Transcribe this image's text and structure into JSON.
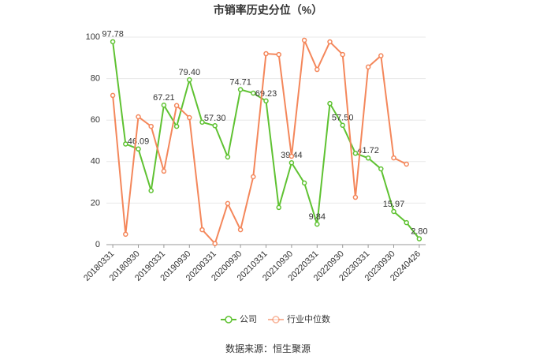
{
  "chart_data": {
    "type": "line",
    "title": "市销率历史分位（%）",
    "categories": [
      "20180331",
      null,
      "20180930",
      null,
      "20190331",
      null,
      "20190930",
      null,
      "20200331",
      null,
      "20200930",
      null,
      "20210331",
      null,
      "20210930",
      null,
      "20220331",
      null,
      "20220930",
      null,
      "20230331",
      null,
      "20230930",
      null,
      "20240426"
    ],
    "series": [
      {
        "name": "公司",
        "color": "#5fc232",
        "values": [
          97.78,
          48.5,
          46.09,
          26,
          67.21,
          57,
          79.4,
          59,
          57.3,
          42.2,
          74.71,
          73,
          69.23,
          17.9,
          39.44,
          29.7,
          9.84,
          68,
          57.5,
          44,
          41.72,
          36.5,
          15.97,
          10.6,
          2.8
        ],
        "value_labels": [
          "97.78",
          null,
          "46.09",
          null,
          "67.21",
          null,
          "79.40",
          null,
          "57.30",
          null,
          "74.71",
          null,
          "69.23",
          null,
          "39.44",
          null,
          "9.84",
          null,
          "57.50",
          null,
          "41.72",
          null,
          "15.97",
          null,
          "2.80"
        ]
      },
      {
        "name": "行业中位数",
        "color": "#f4875b",
        "values": [
          71.9,
          5,
          61.6,
          57,
          35.4,
          67,
          61.2,
          7.2,
          0.5,
          19.8,
          7.2,
          32.7,
          92,
          91.6,
          42.6,
          98.5,
          84.4,
          97.7,
          91.6,
          22.8,
          85.6,
          91,
          41.8,
          38.8,
          null
        ]
      }
    ],
    "ylim": [
      0,
      100
    ],
    "yticks": [
      0,
      20,
      40,
      60,
      80,
      100
    ],
    "grid": true,
    "source": "数据来源：恒生聚源"
  }
}
